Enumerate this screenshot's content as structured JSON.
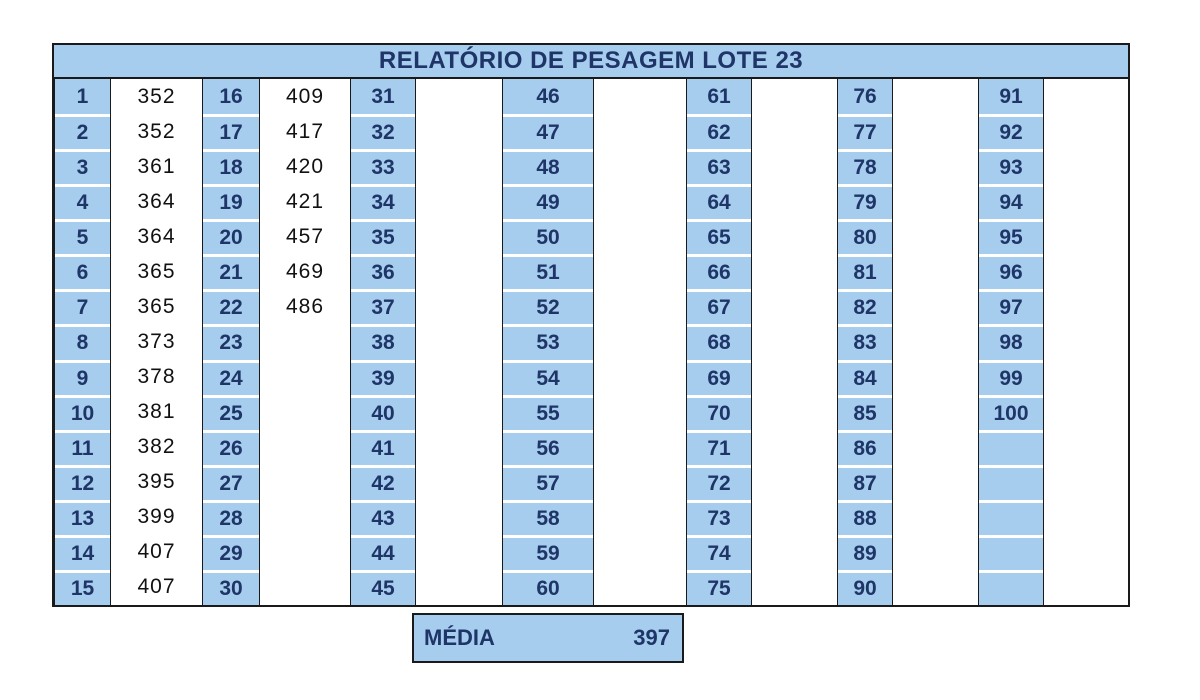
{
  "title": "RELATÓRIO DE PESAGEM LOTE 23",
  "groups": [
    {
      "numbers": [
        "1",
        "2",
        "3",
        "4",
        "5",
        "6",
        "7",
        "8",
        "9",
        "10",
        "11",
        "12",
        "13",
        "14",
        "15"
      ],
      "weights": [
        "352",
        "352",
        "361",
        "364",
        "364",
        "365",
        "365",
        "373",
        "378",
        "381",
        "382",
        "395",
        "399",
        "407",
        "407"
      ]
    },
    {
      "numbers": [
        "16",
        "17",
        "18",
        "19",
        "20",
        "21",
        "22",
        "23",
        "24",
        "25",
        "26",
        "27",
        "28",
        "29",
        "30"
      ],
      "weights": [
        "409",
        "417",
        "420",
        "421",
        "457",
        "469",
        "486",
        "",
        "",
        "",
        "",
        "",
        "",
        "",
        ""
      ]
    },
    {
      "numbers": [
        "31",
        "32",
        "33",
        "34",
        "35",
        "36",
        "37",
        "38",
        "39",
        "40",
        "41",
        "42",
        "43",
        "44",
        "45"
      ],
      "weights": [
        "",
        "",
        "",
        "",
        "",
        "",
        "",
        "",
        "",
        "",
        "",
        "",
        "",
        "",
        ""
      ]
    },
    {
      "numbers": [
        "46",
        "47",
        "48",
        "49",
        "50",
        "51",
        "52",
        "53",
        "54",
        "55",
        "56",
        "57",
        "58",
        "59",
        "60"
      ],
      "weights": [
        "",
        "",
        "",
        "",
        "",
        "",
        "",
        "",
        "",
        "",
        "",
        "",
        "",
        "",
        ""
      ]
    },
    {
      "numbers": [
        "61",
        "62",
        "63",
        "64",
        "65",
        "66",
        "67",
        "68",
        "69",
        "70",
        "71",
        "72",
        "73",
        "74",
        "75"
      ],
      "weights": [
        "",
        "",
        "",
        "",
        "",
        "",
        "",
        "",
        "",
        "",
        "",
        "",
        "",
        "",
        ""
      ]
    },
    {
      "numbers": [
        "76",
        "77",
        "78",
        "79",
        "80",
        "81",
        "82",
        "83",
        "84",
        "85",
        "86",
        "87",
        "88",
        "89",
        "90"
      ],
      "weights": [
        "",
        "",
        "",
        "",
        "",
        "",
        "",
        "",
        "",
        "",
        "",
        "",
        "",
        "",
        ""
      ]
    },
    {
      "numbers": [
        "91",
        "92",
        "93",
        "94",
        "95",
        "96",
        "97",
        "98",
        "99",
        "100",
        "",
        "",
        "",
        "",
        ""
      ],
      "weights": [
        "",
        "",
        "",
        "",
        "",
        "",
        "",
        "",
        "",
        "",
        "",
        "",
        "",
        "",
        ""
      ]
    }
  ],
  "media": {
    "label": "MÉDIA",
    "value": "397"
  }
}
